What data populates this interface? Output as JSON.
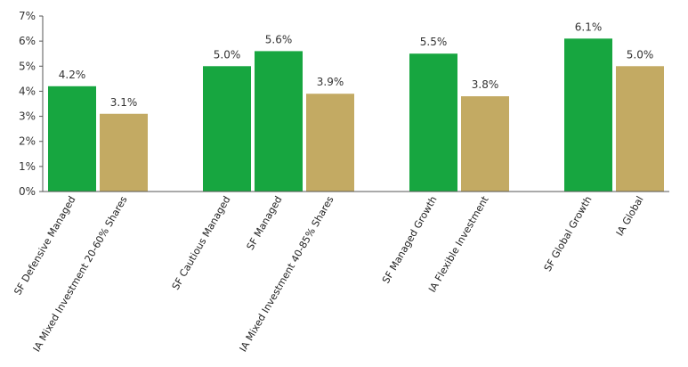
{
  "chart_data": {
    "type": "bar",
    "title": "",
    "xlabel": "",
    "ylabel": "",
    "ylim": [
      0,
      7
    ],
    "yticks": [
      "0%",
      "1%",
      "2%",
      "3%",
      "4%",
      "5%",
      "6%",
      "7%"
    ],
    "grid": false,
    "legend": "none",
    "colors": {
      "sf": "#17a640",
      "ia": "#c3aa63"
    },
    "bars": [
      {
        "category": "SF Defensive Managed",
        "value": 4.2,
        "label": "4.2%",
        "group": 0,
        "kind": "sf"
      },
      {
        "category": "IA Mixed Investment 20-60% Shares",
        "value": 3.1,
        "label": "3.1%",
        "group": 0,
        "kind": "ia"
      },
      {
        "category": "SF Cautious Managed",
        "value": 5.0,
        "label": "5.0%",
        "group": 1,
        "kind": "sf"
      },
      {
        "category": "SF Managed",
        "value": 5.6,
        "label": "5.6%",
        "group": 1,
        "kind": "sf"
      },
      {
        "category": "IA Mixed Investment 40-85% Shares",
        "value": 3.9,
        "label": "3.9%",
        "group": 1,
        "kind": "ia"
      },
      {
        "category": "SF Managed Growth",
        "value": 5.5,
        "label": "5.5%",
        "group": 2,
        "kind": "sf"
      },
      {
        "category": "IA Flexible Investment",
        "value": 3.8,
        "label": "3.8%",
        "group": 2,
        "kind": "ia"
      },
      {
        "category": "SF Global Growth",
        "value": 6.1,
        "label": "6.1%",
        "group": 3,
        "kind": "sf"
      },
      {
        "category": "IA Global",
        "value": 5.0,
        "label": "5.0%",
        "group": 3,
        "kind": "ia"
      }
    ]
  }
}
